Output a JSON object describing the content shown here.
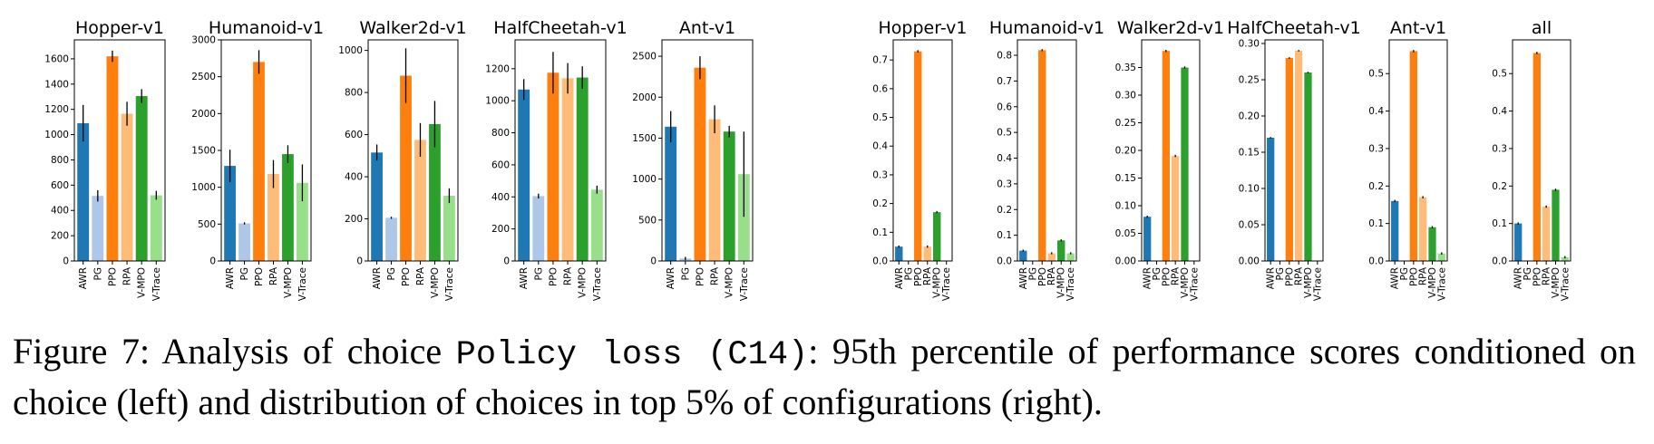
{
  "colors": {
    "AWR": "#1f77b4",
    "PG": "#aec7e8",
    "PPO": "#ff7f0e",
    "RPA": "#ffbb78",
    "V-MPO": "#2ca02c",
    "V-Trace": "#98df8a",
    "error": "#000000"
  },
  "caption": {
    "prefix": "Figure 7: Analysis of choice ",
    "code": "Policy loss (C14)",
    "suffix": ": 95th percentile of performance scores conditioned on choice (left) and distribution of choices in top 5% of configurations (right)."
  },
  "chart_data": [
    {
      "type": "bar",
      "title": "Hopper-v1",
      "categories": [
        "AWR",
        "PG",
        "PPO",
        "RPA",
        "V-MPO",
        "V-Trace"
      ],
      "values": [
        1090,
        515,
        1620,
        1165,
        1305,
        520
      ],
      "errors": [
        145,
        45,
        45,
        95,
        55,
        35
      ],
      "ylim": [
        0,
        1750
      ],
      "yticks": [
        0,
        200,
        400,
        600,
        800,
        1000,
        1200,
        1400,
        1600
      ]
    },
    {
      "type": "bar",
      "title": "Humanoid-v1",
      "categories": [
        "AWR",
        "PG",
        "PPO",
        "RPA",
        "V-MPO",
        "V-Trace"
      ],
      "values": [
        1290,
        510,
        2700,
        1180,
        1450,
        1060
      ],
      "errors": [
        220,
        15,
        160,
        190,
        120,
        250
      ],
      "ylim": [
        0,
        3000
      ],
      "yticks": [
        0,
        500,
        1000,
        1500,
        2000,
        2500,
        3000
      ]
    },
    {
      "type": "bar",
      "title": "Walker2d-v1",
      "categories": [
        "AWR",
        "PG",
        "PPO",
        "RPA",
        "V-MPO",
        "V-Trace"
      ],
      "values": [
        515,
        205,
        880,
        575,
        650,
        310
      ],
      "errors": [
        38,
        5,
        130,
        80,
        110,
        35
      ],
      "ylim": [
        0,
        1050
      ],
      "yticks": [
        0,
        200,
        400,
        600,
        800,
        1000
      ]
    },
    {
      "type": "bar",
      "title": "HalfCheetah-v1",
      "categories": [
        "AWR",
        "PG",
        "PPO",
        "RPA",
        "V-MPO",
        "V-Trace"
      ],
      "values": [
        1070,
        405,
        1175,
        1140,
        1145,
        445
      ],
      "errors": [
        65,
        15,
        130,
        95,
        70,
        25
      ],
      "ylim": [
        0,
        1380
      ],
      "yticks": [
        0,
        200,
        400,
        600,
        800,
        1000,
        1200
      ]
    },
    {
      "type": "bar",
      "title": "Ant-v1",
      "categories": [
        "AWR",
        "PG",
        "PPO",
        "RPA",
        "V-MPO",
        "V-Trace"
      ],
      "values": [
        1640,
        30,
        2360,
        1730,
        1580,
        1060
      ],
      "errors": [
        190,
        20,
        140,
        170,
        70,
        520
      ],
      "ylim": [
        0,
        2700
      ],
      "yticks": [
        0,
        500,
        1000,
        1500,
        2000,
        2500
      ]
    },
    {
      "type": "bar",
      "title": "Hopper-v1",
      "categories": [
        "AWR",
        "PG",
        "PPO",
        "RPA",
        "V-MPO",
        "V-Trace"
      ],
      "values": [
        0.05,
        0,
        0.73,
        0.05,
        0.17,
        0
      ],
      "errors": [
        0.004,
        0,
        0.004,
        0.004,
        0.004,
        0
      ],
      "ylim": [
        0,
        0.77
      ],
      "yticks": [
        0.0,
        0.1,
        0.2,
        0.3,
        0.4,
        0.5,
        0.6,
        0.7
      ]
    },
    {
      "type": "bar",
      "title": "Humanoid-v1",
      "categories": [
        "AWR",
        "PG",
        "PPO",
        "RPA",
        "V-MPO",
        "V-Trace"
      ],
      "values": [
        0.04,
        0,
        0.82,
        0.03,
        0.08,
        0.03
      ],
      "errors": [
        0.004,
        0,
        0.004,
        0.004,
        0.004,
        0.004
      ],
      "ylim": [
        0,
        0.86
      ],
      "yticks": [
        0.0,
        0.1,
        0.2,
        0.3,
        0.4,
        0.5,
        0.6,
        0.7,
        0.8
      ]
    },
    {
      "type": "bar",
      "title": "Walker2d-v1",
      "categories": [
        "AWR",
        "PG",
        "PPO",
        "RPA",
        "V-MPO",
        "V-Trace"
      ],
      "values": [
        0.08,
        0,
        0.38,
        0.19,
        0.35,
        0
      ],
      "errors": [
        0.002,
        0,
        0.002,
        0.002,
        0.002,
        0
      ],
      "ylim": [
        0,
        0.4
      ],
      "yticks": [
        0.0,
        0.05,
        0.1,
        0.15,
        0.2,
        0.25,
        0.3,
        0.35
      ]
    },
    {
      "type": "bar",
      "title": "HalfCheetah-v1",
      "categories": [
        "AWR",
        "PG",
        "PPO",
        "RPA",
        "V-MPO",
        "V-Trace"
      ],
      "values": [
        0.17,
        0,
        0.28,
        0.29,
        0.26,
        0
      ],
      "errors": [
        0.001,
        0,
        0.001,
        0.001,
        0.001,
        0
      ],
      "ylim": [
        0,
        0.305
      ],
      "yticks": [
        0.0,
        0.05,
        0.1,
        0.15,
        0.2,
        0.25,
        0.3
      ]
    },
    {
      "type": "bar",
      "title": "Ant-v1",
      "categories": [
        "AWR",
        "PG",
        "PPO",
        "RPA",
        "V-MPO",
        "V-Trace"
      ],
      "values": [
        0.16,
        0,
        0.56,
        0.17,
        0.09,
        0.02
      ],
      "errors": [
        0.003,
        0,
        0.003,
        0.003,
        0.003,
        0.003
      ],
      "ylim": [
        0,
        0.59
      ],
      "yticks": [
        0.0,
        0.1,
        0.2,
        0.3,
        0.4,
        0.5
      ]
    },
    {
      "type": "bar",
      "title": "all",
      "categories": [
        "AWR",
        "PG",
        "PPO",
        "RPA",
        "V-MPO",
        "V-Trace"
      ],
      "values": [
        0.1,
        0,
        0.555,
        0.145,
        0.19,
        0.01
      ],
      "errors": [
        0.003,
        0,
        0.003,
        0.003,
        0.003,
        0.003
      ],
      "ylim": [
        0,
        0.59
      ],
      "yticks": [
        0.0,
        0.1,
        0.2,
        0.3,
        0.4,
        0.5
      ]
    }
  ]
}
